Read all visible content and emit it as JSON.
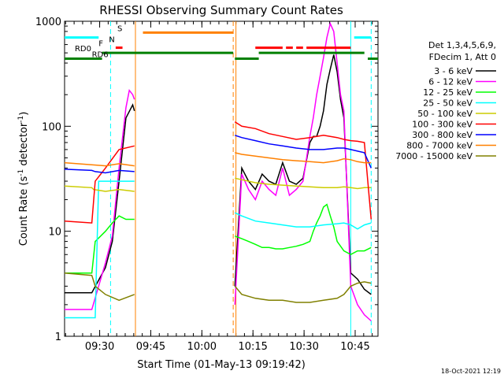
{
  "chart_data": {
    "type": "line",
    "title": "RHESSI Observing Summary Count Rates",
    "xlabel": "Start Time (01-May-13 09:19:42)",
    "ylabel_main": "Count Rate (s",
    "ylabel_sup": "-1",
    "ylabel_tail": " detector",
    "ylabel_end": ")",
    "yscale": "log",
    "ylim": [
      1,
      1000
    ],
    "xlim_minutes": [
      0,
      92
    ],
    "y_ticks": [
      {
        "value": 1,
        "label": "1"
      },
      {
        "value": 10,
        "label": "10"
      },
      {
        "value": 100,
        "label": "100"
      },
      {
        "value": 1000,
        "label": "1000"
      }
    ],
    "x_ticks": [
      {
        "value": 10.3,
        "label": "09:30"
      },
      {
        "value": 25.3,
        "label": "09:45"
      },
      {
        "value": 40.3,
        "label": "10:00"
      },
      {
        "value": 55.3,
        "label": "10:15"
      },
      {
        "value": 70.3,
        "label": "10:30"
      },
      {
        "value": 85.3,
        "label": "10:45"
      }
    ],
    "legend_header": [
      "Det 1,3,4,5,6,9,",
      "FDecim 1, Att 0"
    ],
    "series": [
      {
        "name": "3 - 6 keV",
        "color": "#000000",
        "segments": [
          {
            "x": [
              0,
              8,
              12,
              14,
              16,
              18,
              20,
              20.5
            ],
            "y": [
              2.6,
              2.6,
              4.5,
              8,
              30,
              120,
              160,
              140
            ]
          },
          {
            "x": [
              50,
              52,
              54,
              56,
              58,
              60,
              62,
              64,
              66,
              68,
              70,
              72,
              73,
              74,
              75,
              76,
              77,
              78,
              79,
              80,
              81,
              82,
              84,
              86,
              88,
              90
            ],
            "y": [
              3,
              40,
              30,
              25,
              35,
              30,
              28,
              45,
              30,
              28,
              32,
              70,
              80,
              80,
              100,
              140,
              250,
              350,
              480,
              330,
              180,
              120,
              4,
              3.5,
              2.8,
              2.5
            ]
          }
        ]
      },
      {
        "name": "6 - 12 keV",
        "color": "#ff00ff",
        "segments": [
          {
            "x": [
              0,
              8,
              12,
              14,
              16,
              18,
              19,
              20,
              20.5
            ],
            "y": [
              1.8,
              1.8,
              5,
              9,
              40,
              150,
              220,
              200,
              180
            ]
          },
          {
            "x": [
              50,
              52,
              54,
              56,
              58,
              60,
              62,
              64,
              66,
              68,
              70,
              72,
              73,
              74,
              75,
              76,
              77,
              78,
              79,
              80,
              81,
              82,
              84,
              86,
              88,
              90
            ],
            "y": [
              2,
              35,
              25,
              20,
              30,
              25,
              22,
              40,
              22,
              25,
              30,
              80,
              120,
              200,
              300,
              450,
              700,
              950,
              800,
              400,
              200,
              140,
              3,
              2,
              1.6,
              1.4
            ]
          }
        ]
      },
      {
        "name": "12 - 25 keV",
        "color": "#00ff00",
        "segments": [
          {
            "x": [
              0,
              8,
              9,
              12,
              14,
              16,
              18,
              20.5
            ],
            "y": [
              4,
              4,
              8,
              10,
              12,
              14,
              13,
              13
            ]
          },
          {
            "x": [
              50,
              52,
              54,
              56,
              58,
              60,
              62,
              64,
              66,
              68,
              70,
              72,
              73,
              74,
              75,
              76,
              77,
              78,
              79,
              80,
              82,
              84,
              86,
              88,
              90
            ],
            "y": [
              9,
              8.5,
              8,
              7.5,
              7,
              7,
              6.8,
              6.8,
              7,
              7.2,
              7.5,
              8,
              10,
              12,
              14,
              17,
              18,
              14,
              11,
              8,
              6.5,
              6,
              6.5,
              6.5,
              7
            ]
          }
        ]
      },
      {
        "name": "25 - 50 keV",
        "color": "#00ffff",
        "segments": [
          {
            "x": [
              0,
              9,
              10,
              20.5
            ],
            "y": [
              1.5,
              1.5,
              30,
              30
            ]
          },
          {
            "x": [
              50,
              52,
              56,
              60,
              64,
              68,
              72,
              76,
              80,
              82,
              84,
              86,
              88,
              90
            ],
            "y": [
              15,
              14,
              12.5,
              12,
              11.5,
              11,
              11,
              11.5,
              11.8,
              12,
              11.5,
              10.5,
              11.5,
              12
            ]
          }
        ]
      },
      {
        "name": "50 - 100 keV",
        "color": "#cccc00",
        "segments": [
          {
            "x": [
              0,
              8,
              8.5,
              12,
              16,
              20.5
            ],
            "y": [
              27,
              26,
              25,
              24,
              25,
              24
            ]
          },
          {
            "x": [
              50,
              52,
              56,
              60,
              64,
              68,
              72,
              76,
              80,
              82,
              84,
              86,
              88,
              90
            ],
            "y": [
              32,
              31,
              29,
              28,
              27.5,
              27,
              26.5,
              26,
              26,
              26.5,
              26,
              25.5,
              26,
              26
            ]
          }
        ]
      },
      {
        "name": "100 - 300 keV",
        "color": "#ff0000",
        "segments": [
          {
            "x": [
              0,
              8,
              9,
              12,
              16,
              20.5
            ],
            "y": [
              12.5,
              12,
              30,
              40,
              60,
              65
            ]
          },
          {
            "x": [
              50,
              52,
              56,
              60,
              64,
              68,
              72,
              76,
              80,
              82,
              84,
              86,
              88,
              90
            ],
            "y": [
              110,
              100,
              95,
              85,
              80,
              75,
              78,
              82,
              78,
              75,
              73,
              72,
              70,
              13
            ]
          }
        ]
      },
      {
        "name": "300 - 800 keV",
        "color": "#0000ff",
        "segments": [
          {
            "x": [
              0,
              8,
              9,
              12,
              16,
              20.5
            ],
            "y": [
              39,
              38,
              37,
              36,
              38,
              37
            ]
          },
          {
            "x": [
              50,
              52,
              56,
              60,
              64,
              68,
              72,
              76,
              80,
              82,
              84,
              86,
              88,
              90
            ],
            "y": [
              82,
              78,
              73,
              68,
              65,
              62,
              60,
              60,
              62,
              62,
              60,
              58,
              56,
              40
            ]
          }
        ]
      },
      {
        "name": "800 - 7000 keV",
        "color": "#ff8000",
        "segments": [
          {
            "x": [
              0,
              8,
              12,
              16,
              20.5
            ],
            "y": [
              45,
              43,
              42,
              44,
              42
            ]
          },
          {
            "x": [
              50,
              52,
              56,
              60,
              64,
              68,
              72,
              76,
              80,
              82,
              84,
              86,
              88,
              90
            ],
            "y": [
              56,
              54,
              52,
              50,
              48,
              47,
              46,
              45,
              47,
              49,
              48,
              46,
              45,
              45
            ]
          }
        ]
      },
      {
        "name": "7000 - 15000 keV",
        "color": "#808000",
        "segments": [
          {
            "x": [
              0,
              8,
              9,
              12,
              16,
              20.5
            ],
            "y": [
              4,
              3.8,
              3,
              2.5,
              2.2,
              2.5
            ]
          },
          {
            "x": [
              50,
              52,
              56,
              60,
              64,
              68,
              72,
              76,
              80,
              82,
              84,
              86,
              88,
              90
            ],
            "y": [
              3,
              2.5,
              2.3,
              2.2,
              2.2,
              2.1,
              2.1,
              2.2,
              2.3,
              2.5,
              3,
              3.2,
              3.3,
              3.2
            ]
          }
        ]
      }
    ],
    "status_bars": [
      {
        "label": "",
        "color": "#00ffff",
        "log_y": 700,
        "intervals": [
          [
            0,
            10
          ],
          [
            85,
            90
          ]
        ]
      },
      {
        "label": "N",
        "color": "#00ffff",
        "log_y": 610,
        "intervals": []
      },
      {
        "label": "S",
        "color": "#ff8000",
        "log_y": 780,
        "intervals": [
          [
            23,
            49.5
          ]
        ]
      },
      {
        "label": "F",
        "color": "#ff0000",
        "log_y": 560,
        "intervals": [
          [
            15,
            17
          ],
          [
            56,
            64
          ],
          [
            65,
            67
          ],
          [
            68,
            70
          ],
          [
            71,
            84
          ]
        ]
      },
      {
        "label": "RD0",
        "color": "#008000",
        "log_y": 500,
        "intervals": [
          [
            11,
            49.5
          ],
          [
            57,
            88
          ]
        ]
      },
      {
        "label": "RD6",
        "color": "#008000",
        "log_y": 440,
        "intervals": [
          [
            0,
            11
          ],
          [
            50,
            57
          ],
          [
            89,
            92
          ]
        ]
      }
    ],
    "vertical_lines": [
      {
        "x": 13.5,
        "color": "#00ffff",
        "style": "dashed"
      },
      {
        "x": 20.8,
        "color": "#ff8000",
        "style": "solid"
      },
      {
        "x": 49.5,
        "color": "#ff8000",
        "style": "dashed"
      },
      {
        "x": 50.3,
        "color": "#ff8000",
        "style": "solid"
      },
      {
        "x": 84.0,
        "color": "#00ffff",
        "style": "solid"
      },
      {
        "x": 90.0,
        "color": "#00ffff",
        "style": "dashed"
      }
    ],
    "timestamp": "18-Oct-2021 12:19"
  }
}
